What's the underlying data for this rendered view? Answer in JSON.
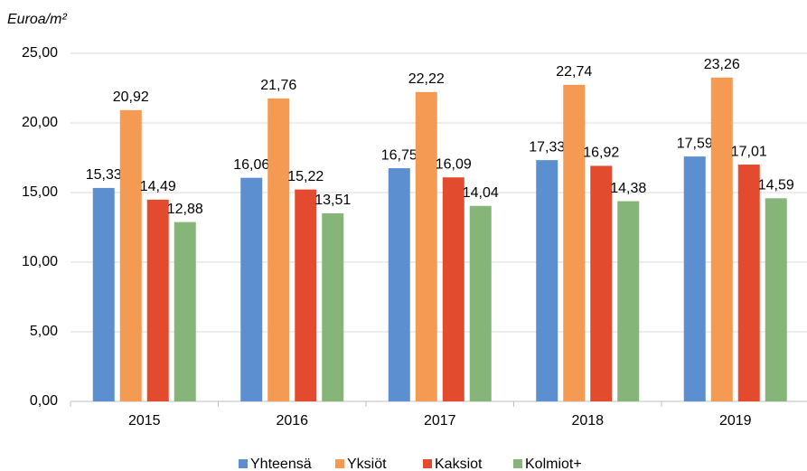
{
  "chart_data": {
    "type": "bar",
    "y_label": "Euroa/m²",
    "categories": [
      "2015",
      "2016",
      "2017",
      "2018",
      "2019"
    ],
    "series": [
      {
        "name": "Yhteensä",
        "color": "#5b8fd0",
        "values": [
          15.33,
          16.06,
          16.75,
          17.33,
          17.59
        ],
        "value_labels": [
          "15,33",
          "16,06",
          "16,75",
          "17,33",
          "17,59"
        ]
      },
      {
        "name": "Yksiöt",
        "color": "#f59a52",
        "values": [
          20.92,
          21.76,
          22.22,
          22.74,
          23.26
        ],
        "value_labels": [
          "20,92",
          "21,76",
          "22,22",
          "22,74",
          "23,26"
        ]
      },
      {
        "name": "Kaksiot",
        "color": "#e34b2e",
        "values": [
          14.49,
          15.22,
          16.09,
          16.92,
          17.01
        ],
        "value_labels": [
          "14,49",
          "15,22",
          "16,09",
          "16,92",
          "17,01"
        ]
      },
      {
        "name": "Kolmiot+",
        "color": "#86b57a",
        "values": [
          12.88,
          13.51,
          14.04,
          14.38,
          14.59
        ],
        "value_labels": [
          "12,88",
          "13,51",
          "14,04",
          "14,38",
          "14,59"
        ]
      }
    ],
    "ylim": [
      0,
      25
    ],
    "yticks": [
      {
        "value": 0,
        "label": "0,00"
      },
      {
        "value": 5,
        "label": "5,00"
      },
      {
        "value": 10,
        "label": "10,00"
      },
      {
        "value": 15,
        "label": "15,00"
      },
      {
        "value": 20,
        "label": "20,00"
      },
      {
        "value": 25,
        "label": "25,00"
      }
    ],
    "grid": true,
    "legend": "bottom"
  }
}
